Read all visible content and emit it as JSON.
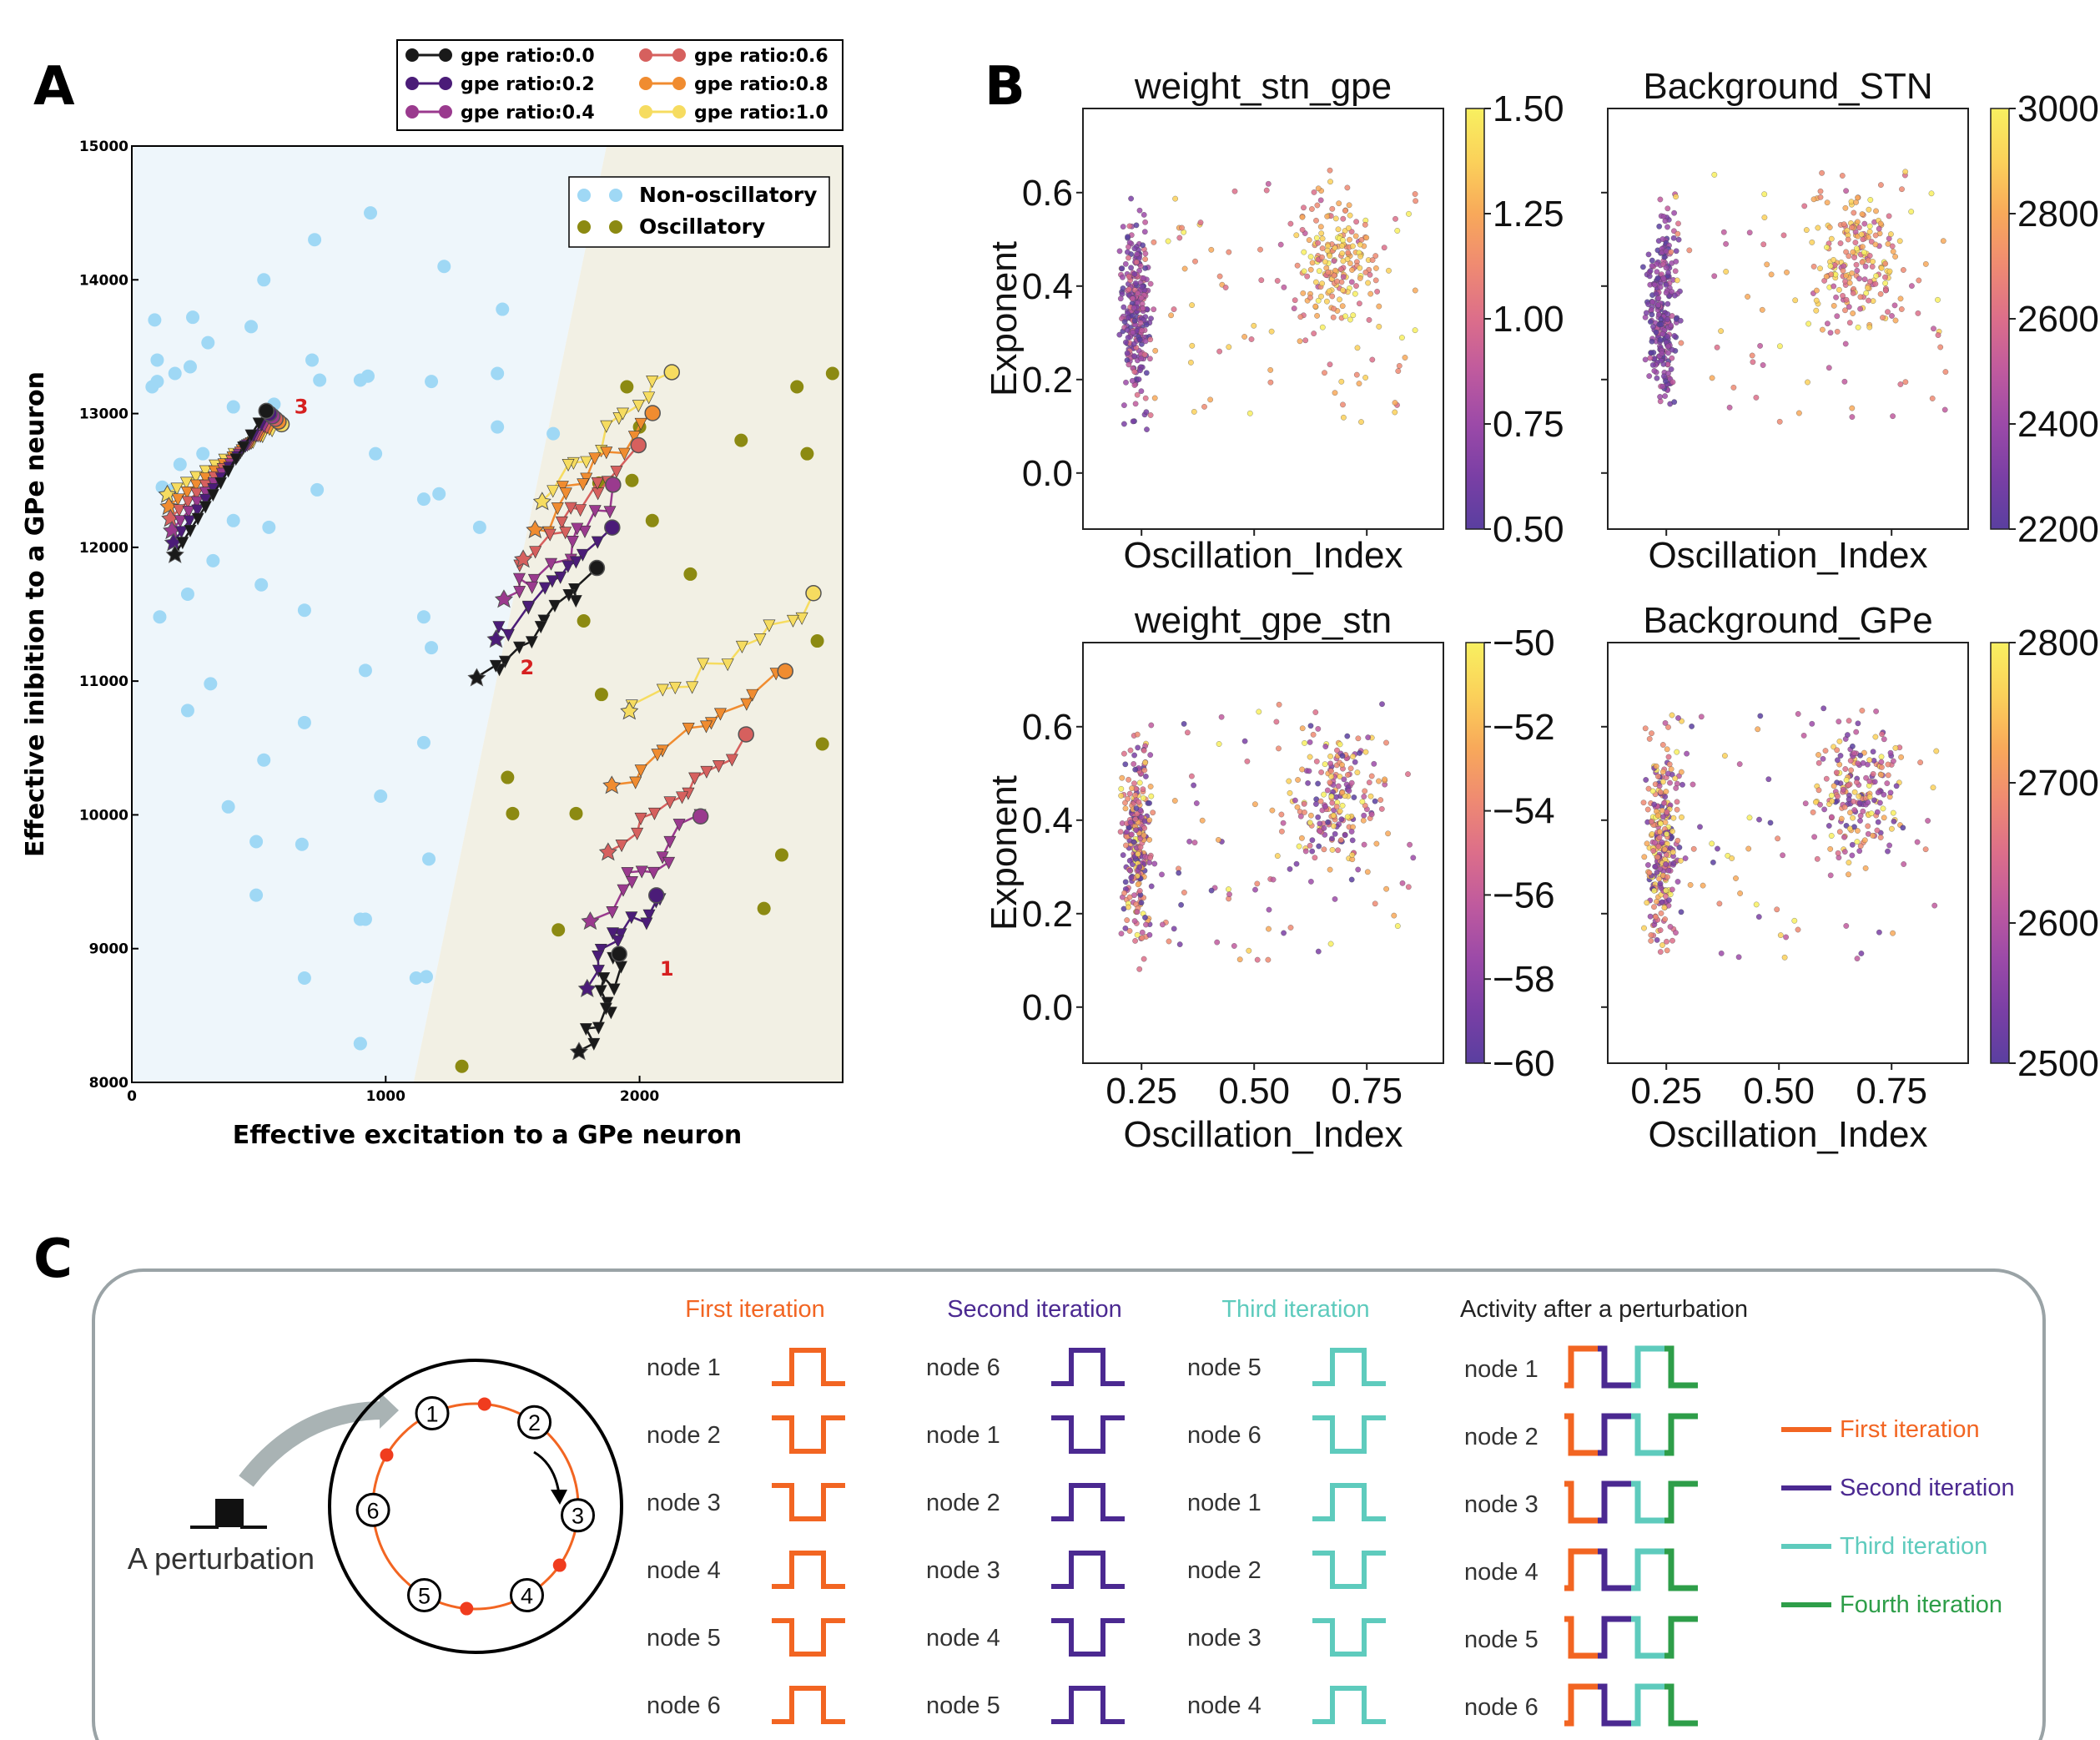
{
  "panels": {
    "A": "A",
    "B": "B",
    "C": "C"
  },
  "chart_data": [
    {
      "type": "scatter",
      "panel": "A",
      "xlabel": "Effective excitation to a GPe neuron",
      "ylabel": "Effective inibition to a GPe neuron",
      "xlim": [
        0,
        2800
      ],
      "ylim": [
        8000,
        15000
      ],
      "x_ticks": [
        "0",
        "1000",
        "2000"
      ],
      "y_ticks": [
        "8000",
        "9000",
        "10000",
        "11000",
        "12000",
        "13000",
        "14000",
        "15000"
      ],
      "regions": [
        {
          "name": "Non-oscillatory",
          "color": "#eef6fb",
          "boundary": [
            [
              1110,
              8000
            ],
            [
              1870,
              15000
            ]
          ]
        },
        {
          "name": "Oscillatory",
          "color": "#f2f0e4"
        }
      ],
      "series": [
        {
          "name": "Non-oscillatory",
          "color": "#9fd8f5",
          "x": [
            120,
            160,
            190,
            280,
            400,
            540,
            730,
            960,
            1210,
            1440,
            1660,
            80,
            100,
            170,
            300,
            470,
            710,
            930,
            1180,
            1440,
            100,
            240,
            520,
            720,
            940,
            1230,
            1460,
            90,
            230,
            400,
            560,
            740,
            900,
            1150,
            1370,
            110,
            220,
            320,
            510,
            680,
            920,
            1150,
            220,
            310,
            520,
            680,
            1150,
            980,
            900,
            490,
            900,
            490,
            680,
            1170,
            670,
            380,
            1160,
            900,
            1120,
            1180,
            920
          ],
          "y": [
            12450,
            12430,
            12620,
            12700,
            12200,
            12150,
            12430,
            12700,
            12400,
            12900,
            12850,
            13200,
            13240,
            13300,
            13530,
            13650,
            13400,
            13280,
            13240,
            13300,
            13400,
            13720,
            14000,
            14300,
            14500,
            14100,
            13780,
            13700,
            13350,
            13050,
            13070,
            13250,
            13250,
            12360,
            12150,
            11480,
            11650,
            11900,
            11720,
            11530,
            11080,
            11480,
            10780,
            10980,
            10410,
            10690,
            10540,
            10140,
            9220,
            9400,
            8290,
            9800,
            8780,
            9670,
            9780,
            10060,
            8790,
            8290,
            8780,
            11250,
            9220
          ]
        },
        {
          "name": "Oscillatory",
          "color": "#8c8a12",
          "x": [
            1300,
            1480,
            1500,
            1680,
            1750,
            1780,
            1840,
            1950,
            2000,
            2050,
            2400,
            2490,
            2560,
            2620,
            2660,
            2700,
            2720,
            2760,
            2200,
            1970,
            1850
          ],
          "y": [
            8120,
            10280,
            10010,
            9140,
            10010,
            11450,
            12480,
            13200,
            12900,
            12200,
            12800,
            9300,
            9700,
            13200,
            12700,
            11300,
            10530,
            13300,
            11800,
            12500,
            10900
          ]
        }
      ],
      "trajectory_legend": [
        {
          "label": "gpe ratio:0.0",
          "color": "#1a1a1a"
        },
        {
          "label": "gpe ratio:0.2",
          "color": "#4b1c78"
        },
        {
          "label": "gpe ratio:0.4",
          "color": "#9a3a8e"
        },
        {
          "label": "gpe ratio:0.6",
          "color": "#d6605e"
        },
        {
          "label": "gpe ratio:0.8",
          "color": "#f08c30"
        },
        {
          "label": "gpe ratio:1.0",
          "color": "#f6dc60"
        }
      ],
      "trajectory_sets": [
        {
          "label": "1",
          "start": [
            2040,
            12990
          ],
          "end": [
            1800,
            8250
          ]
        },
        {
          "label": "2",
          "start": [
            1900,
            12000
          ],
          "end": [
            1350,
            11000
          ]
        },
        {
          "label": "3",
          "start": [
            590,
            13120
          ],
          "end": [
            140,
            11950
          ]
        }
      ],
      "legend_position": "upper right"
    },
    {
      "type": "scatter",
      "panel": "B",
      "subplots": [
        {
          "title": "weight_stn_gpe",
          "colorbar_ticks": [
            "1.50",
            "1.25",
            "1.00",
            "0.75",
            "0.50"
          ],
          "clim": [
            0.3,
            1.55
          ],
          "seed": 11
        },
        {
          "title": "Background_STN",
          "colorbar_ticks": [
            "3000",
            "2800",
            "2600",
            "2400",
            "2200"
          ],
          "clim": [
            2200,
            3000
          ],
          "seed": 23
        },
        {
          "title": "weight_gpe_stn",
          "colorbar_ticks": [
            "−50",
            "−52",
            "−54",
            "−56",
            "−58",
            "−60"
          ],
          "clim": [
            -60,
            -50
          ],
          "seed": 37
        },
        {
          "title": "Background_GPe",
          "colorbar_ticks": [
            "2800",
            "2700",
            "2600",
            "2500"
          ],
          "clim": [
            2500,
            2800
          ],
          "seed": 41
        }
      ],
      "xlabel": "Oscillation_Index",
      "ylabel": "Exponent",
      "xlim": [
        0.12,
        0.92
      ],
      "ylim": [
        -0.12,
        0.78
      ],
      "x_ticks": [
        "0.25",
        "0.50",
        "0.75"
      ],
      "y_ticks": [
        "0.0",
        "0.2",
        "0.4",
        "0.6"
      ],
      "colormap": "plasma",
      "clusters": [
        {
          "x_center": 0.24,
          "y_center": 0.35,
          "n": 260
        },
        {
          "x_center": 0.68,
          "y_center": 0.46,
          "n": 180
        },
        {
          "x_center": 0.55,
          "y_center": 0.4,
          "n": 90
        }
      ]
    }
  ],
  "panel_c": {
    "perturbation_label": "A perturbation",
    "ring_nodes": [
      "1",
      "2",
      "3",
      "4",
      "5",
      "6"
    ],
    "columns": [
      {
        "header": "First iteration",
        "color": "#f26522",
        "nodes": [
          "node 1",
          "node 2",
          "node 3",
          "node 4",
          "node 5",
          "node 6"
        ],
        "pulses": [
          "up",
          "down",
          "down",
          "up",
          "down",
          "up"
        ]
      },
      {
        "header": "Second iteration",
        "color": "#4b2991",
        "nodes": [
          "node 6",
          "node 1",
          "node 2",
          "node 3",
          "node 4",
          "node 5"
        ],
        "pulses": [
          "up",
          "down",
          "up",
          "up",
          "down",
          "up"
        ]
      },
      {
        "header": "Third iteration",
        "color": "#5ecbbd",
        "nodes": [
          "node 5",
          "node 6",
          "node 1",
          "node 2",
          "node 3",
          "node 4"
        ],
        "pulses": [
          "up",
          "down",
          "up",
          "down",
          "down",
          "up"
        ]
      }
    ],
    "activity": {
      "header": "Activity after a perturbation",
      "nodes": [
        "node 1",
        "node 2",
        "node 3",
        "node 4",
        "node 5",
        "node 6"
      ]
    },
    "legend": [
      {
        "label": "First iteration",
        "color": "#f26522"
      },
      {
        "label": "Second iteration",
        "color": "#4b2991"
      },
      {
        "label": "Third iteration",
        "color": "#5ecbbd"
      },
      {
        "label": "Fourth iteration",
        "color": "#2e9e49"
      }
    ]
  }
}
